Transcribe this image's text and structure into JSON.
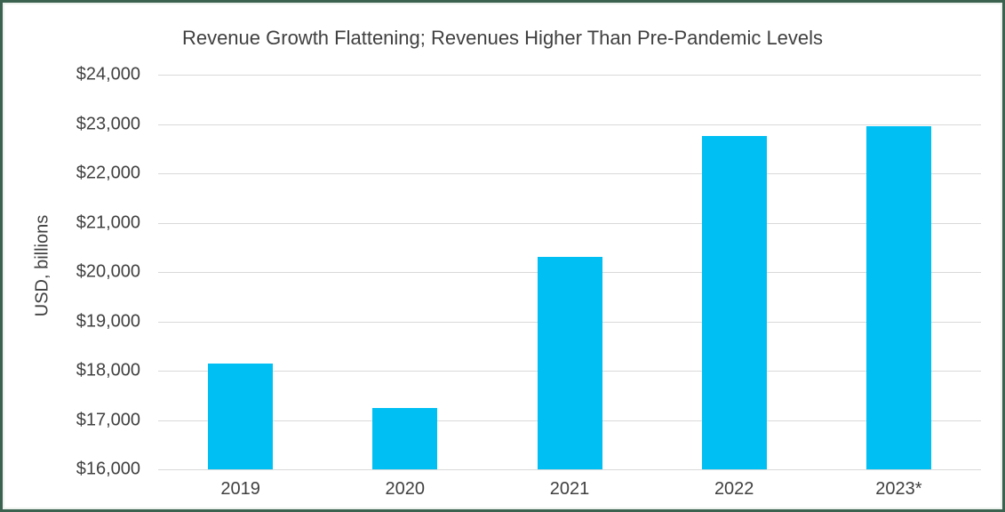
{
  "chart_data": {
    "type": "bar",
    "title": "Revenue Growth Flattening; Revenues Higher Than Pre-Pandemic Levels",
    "ylabel": "USD, billions",
    "xlabel": "",
    "categories": [
      "2019",
      "2020",
      "2021",
      "2022",
      "2023*"
    ],
    "values": [
      18150,
      17250,
      20300,
      22750,
      22950
    ],
    "ylim": [
      16000,
      24000
    ],
    "ytick_step": 1000,
    "ytick_format": "$#,##0",
    "grid": "horizontal",
    "legend": "none",
    "bar_color": "#00BFF3",
    "text_color": "#404040",
    "gridline_color": "#D9D9D9",
    "frame_border_color": "#3B624F"
  }
}
